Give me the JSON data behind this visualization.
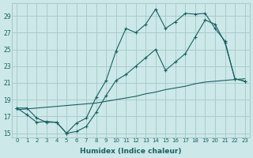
{
  "xlabel": "Humidex (Indice chaleur)",
  "bg_color": "#cce8e8",
  "grid_color": "#aacccc",
  "line_color": "#1a6060",
  "xlim": [
    -0.5,
    23.5
  ],
  "ylim": [
    14.5,
    30.5
  ],
  "xticks": [
    0,
    1,
    2,
    3,
    4,
    5,
    6,
    7,
    8,
    9,
    10,
    11,
    12,
    13,
    14,
    15,
    16,
    17,
    18,
    19,
    20,
    21,
    22,
    23
  ],
  "yticks": [
    15,
    17,
    19,
    21,
    23,
    25,
    27,
    29
  ],
  "series1_x": [
    0,
    1,
    2,
    3,
    4,
    5,
    6,
    7,
    8,
    9,
    10,
    11,
    12,
    13,
    14,
    15,
    16,
    17,
    18,
    19,
    20,
    21,
    22,
    23
  ],
  "series1_y": [
    18.0,
    18.0,
    16.8,
    16.3,
    16.3,
    15.0,
    16.2,
    16.8,
    19.3,
    21.3,
    24.8,
    27.5,
    27.0,
    28.0,
    29.8,
    27.5,
    28.3,
    29.3,
    29.2,
    29.3,
    27.5,
    26.0,
    21.5,
    21.2
  ],
  "series2_x": [
    0,
    1,
    2,
    3,
    4,
    5,
    6,
    7,
    8,
    9,
    10,
    11,
    12,
    13,
    14,
    15,
    16,
    17,
    18,
    19,
    20,
    21,
    22,
    23
  ],
  "series2_y": [
    18.0,
    17.2,
    16.3,
    16.4,
    16.3,
    15.0,
    15.2,
    15.8,
    17.5,
    19.5,
    21.3,
    22.0,
    23.0,
    24.0,
    25.0,
    22.5,
    23.5,
    24.5,
    26.5,
    28.5,
    28.0,
    25.8,
    21.5,
    21.2
  ],
  "series3_x": [
    0,
    1,
    2,
    3,
    4,
    5,
    6,
    7,
    8,
    9,
    10,
    11,
    12,
    13,
    14,
    15,
    16,
    17,
    18,
    19,
    20,
    21,
    22,
    23
  ],
  "series3_y": [
    17.8,
    17.9,
    18.0,
    18.1,
    18.2,
    18.3,
    18.4,
    18.5,
    18.6,
    18.8,
    19.0,
    19.2,
    19.4,
    19.7,
    19.9,
    20.2,
    20.4,
    20.6,
    20.9,
    21.1,
    21.2,
    21.3,
    21.4,
    21.5
  ]
}
